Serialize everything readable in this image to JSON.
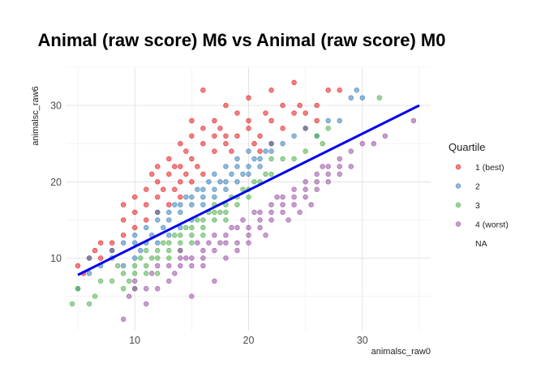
{
  "chart_data": {
    "type": "scatter",
    "title": "Animal (raw score) M6 vs Animal (raw score) M0",
    "xlabel": "animalsc_raw0",
    "ylabel": "animalsc_raw6",
    "xlim": [
      4,
      36
    ],
    "ylim": [
      0.5,
      35
    ],
    "x_ticks": [
      10,
      20,
      30
    ],
    "y_ticks": [
      10,
      20,
      30
    ],
    "x_tick_labels": [
      "10",
      "20",
      "30"
    ],
    "y_tick_labels": [
      "10",
      "20",
      "30"
    ],
    "grid": true,
    "legend": {
      "title": "Quartile",
      "placement": "right",
      "entries": [
        "1 (best)",
        "2",
        "3",
        "4 (worst)",
        "NA"
      ]
    },
    "trend_line": {
      "x": [
        5,
        35
      ],
      "y": [
        7.8,
        30
      ],
      "color": "#0000ee"
    },
    "series": [
      {
        "name": "1 (best)",
        "color": "#e41a1c",
        "points": [
          [
            5,
            9
          ],
          [
            5.5,
            8
          ],
          [
            6,
            10
          ],
          [
            6.5,
            11
          ],
          [
            7,
            12
          ],
          [
            7,
            10
          ],
          [
            8,
            12
          ],
          [
            8,
            11
          ],
          [
            9,
            13
          ],
          [
            9,
            17
          ],
          [
            9,
            15
          ],
          [
            10,
            16
          ],
          [
            10,
            18
          ],
          [
            10,
            14
          ],
          [
            11,
            17
          ],
          [
            11,
            15
          ],
          [
            11,
            19
          ],
          [
            11.5,
            21
          ],
          [
            12,
            18
          ],
          [
            12,
            20
          ],
          [
            12,
            22
          ],
          [
            12,
            16
          ],
          [
            12.5,
            19
          ],
          [
            13,
            21
          ],
          [
            13,
            17
          ],
          [
            13,
            23
          ],
          [
            13.5,
            19
          ],
          [
            13.5,
            22
          ],
          [
            14,
            25
          ],
          [
            14,
            20
          ],
          [
            14,
            22
          ],
          [
            14,
            18
          ],
          [
            14.5,
            24
          ],
          [
            14.5,
            21
          ],
          [
            15,
            26
          ],
          [
            15,
            23
          ],
          [
            15,
            20
          ],
          [
            15,
            28
          ],
          [
            15.5,
            22
          ],
          [
            16,
            25
          ],
          [
            16,
            27
          ],
          [
            16,
            21
          ],
          [
            16,
            32
          ],
          [
            17,
            26
          ],
          [
            17,
            24
          ],
          [
            17,
            28
          ],
          [
            17.5,
            27
          ],
          [
            18,
            26
          ],
          [
            18,
            25
          ],
          [
            18,
            30
          ],
          [
            18.5,
            24
          ],
          [
            19,
            29
          ],
          [
            19,
            26
          ],
          [
            20,
            28
          ],
          [
            20,
            27
          ],
          [
            20,
            31
          ],
          [
            20.5,
            25
          ],
          [
            21,
            24
          ],
          [
            21,
            26
          ],
          [
            21.5,
            29
          ],
          [
            22,
            28
          ],
          [
            22,
            25
          ],
          [
            22,
            32
          ],
          [
            23,
            27
          ],
          [
            23,
            30
          ],
          [
            24,
            29
          ],
          [
            24,
            33
          ],
          [
            24.5,
            30
          ],
          [
            25,
            29
          ],
          [
            25,
            27
          ],
          [
            26,
            30
          ],
          [
            26,
            28
          ],
          [
            27,
            32
          ],
          [
            28,
            32
          ]
        ]
      },
      {
        "name": "2",
        "color": "#377eb8",
        "points": [
          [
            5,
            6
          ],
          [
            6,
            8
          ],
          [
            6,
            10
          ],
          [
            7,
            9
          ],
          [
            8,
            10
          ],
          [
            8,
            11
          ],
          [
            9,
            9
          ],
          [
            9,
            12
          ],
          [
            10,
            10
          ],
          [
            10,
            12
          ],
          [
            10,
            13
          ],
          [
            10.5,
            11
          ],
          [
            11,
            12
          ],
          [
            11,
            14
          ],
          [
            11.5,
            13
          ],
          [
            12,
            15
          ],
          [
            12,
            12
          ],
          [
            12,
            16
          ],
          [
            12.5,
            14
          ],
          [
            13,
            13
          ],
          [
            13,
            16
          ],
          [
            13,
            15
          ],
          [
            13.5,
            17
          ],
          [
            14,
            14
          ],
          [
            14,
            17
          ],
          [
            14,
            16
          ],
          [
            14.5,
            18
          ],
          [
            15,
            15
          ],
          [
            15,
            18
          ],
          [
            15,
            17
          ],
          [
            15.5,
            19
          ],
          [
            16,
            17
          ],
          [
            16,
            19
          ],
          [
            16,
            18
          ],
          [
            16.5,
            20
          ],
          [
            17,
            18
          ],
          [
            17,
            19
          ],
          [
            17,
            21
          ],
          [
            17.5,
            20
          ],
          [
            18,
            19
          ],
          [
            18,
            20
          ],
          [
            18,
            22
          ],
          [
            18.5,
            21
          ],
          [
            19,
            20
          ],
          [
            19,
            22
          ],
          [
            19,
            23
          ],
          [
            19.5,
            21
          ],
          [
            20,
            21
          ],
          [
            20,
            22
          ],
          [
            20,
            24
          ],
          [
            20.5,
            23
          ],
          [
            21,
            22
          ],
          [
            21,
            23
          ],
          [
            21.5,
            24
          ],
          [
            22,
            24
          ],
          [
            22,
            25
          ],
          [
            23,
            25
          ],
          [
            24,
            26
          ],
          [
            25,
            27
          ],
          [
            26,
            26
          ],
          [
            27,
            28
          ],
          [
            28,
            28
          ],
          [
            29,
            31
          ],
          [
            29.5,
            32
          ],
          [
            30,
            31
          ]
        ]
      },
      {
        "name": "3",
        "color": "#4daf4a",
        "points": [
          [
            4.5,
            4
          ],
          [
            5,
            6
          ],
          [
            6,
            4
          ],
          [
            6.5,
            5
          ],
          [
            7,
            7
          ],
          [
            8,
            7
          ],
          [
            8.5,
            9
          ],
          [
            9,
            6
          ],
          [
            9,
            8
          ],
          [
            9.5,
            7
          ],
          [
            10,
            8
          ],
          [
            10,
            9
          ],
          [
            10,
            6
          ],
          [
            10.5,
            10
          ],
          [
            11,
            9
          ],
          [
            11,
            8
          ],
          [
            11,
            11
          ],
          [
            11.5,
            10
          ],
          [
            12,
            10
          ],
          [
            12,
            11
          ],
          [
            12,
            8
          ],
          [
            12.5,
            12
          ],
          [
            13,
            11
          ],
          [
            13,
            12
          ],
          [
            13,
            10
          ],
          [
            13.5,
            13
          ],
          [
            14,
            12
          ],
          [
            14,
            13
          ],
          [
            14,
            11
          ],
          [
            14.5,
            14
          ],
          [
            15,
            13
          ],
          [
            15,
            14
          ],
          [
            15,
            12
          ],
          [
            15.5,
            15
          ],
          [
            16,
            14
          ],
          [
            16,
            15
          ],
          [
            16,
            13
          ],
          [
            16.5,
            16
          ],
          [
            17,
            15
          ],
          [
            17,
            16
          ],
          [
            17,
            17
          ],
          [
            17.5,
            16
          ],
          [
            18,
            16
          ],
          [
            18,
            17
          ],
          [
            18,
            15
          ],
          [
            18.5,
            18
          ],
          [
            19,
            17
          ],
          [
            19,
            18
          ],
          [
            19.5,
            19
          ],
          [
            20,
            18
          ],
          [
            20,
            19
          ],
          [
            20.5,
            20
          ],
          [
            21,
            20
          ],
          [
            21.5,
            21
          ],
          [
            22,
            21
          ],
          [
            22,
            23
          ],
          [
            23,
            23
          ],
          [
            24,
            23
          ],
          [
            25,
            24
          ],
          [
            26,
            26
          ],
          [
            26.5,
            25
          ],
          [
            27,
            27
          ],
          [
            31.5,
            31
          ]
        ]
      },
      {
        "name": "4 (worst)",
        "color": "#984ea3",
        "points": [
          [
            9,
            2
          ],
          [
            9.5,
            5
          ],
          [
            10,
            6
          ],
          [
            10,
            7
          ],
          [
            11,
            4
          ],
          [
            11,
            6
          ],
          [
            11.5,
            8
          ],
          [
            12,
            6
          ],
          [
            12,
            9
          ],
          [
            13,
            7
          ],
          [
            13,
            9
          ],
          [
            13.5,
            8
          ],
          [
            14,
            9
          ],
          [
            14,
            10
          ],
          [
            14,
            11
          ],
          [
            14.5,
            10
          ],
          [
            15,
            5
          ],
          [
            15,
            9
          ],
          [
            15,
            10
          ],
          [
            15.5,
            12
          ],
          [
            16,
            9
          ],
          [
            16,
            11
          ],
          [
            16,
            10
          ],
          [
            16.5,
            12
          ],
          [
            17,
            11
          ],
          [
            17,
            13
          ],
          [
            17,
            7
          ],
          [
            17.5,
            12
          ],
          [
            18,
            10
          ],
          [
            18,
            12
          ],
          [
            18,
            13
          ],
          [
            18.5,
            14
          ],
          [
            19,
            11
          ],
          [
            19,
            12
          ],
          [
            19,
            14
          ],
          [
            19.5,
            15
          ],
          [
            20,
            13
          ],
          [
            20,
            14
          ],
          [
            20,
            12
          ],
          [
            20.5,
            16
          ],
          [
            21,
            14
          ],
          [
            21,
            15
          ],
          [
            21,
            16
          ],
          [
            21.5,
            13
          ],
          [
            22,
            15
          ],
          [
            22,
            16
          ],
          [
            22,
            17
          ],
          [
            22.5,
            18
          ],
          [
            23,
            16
          ],
          [
            23,
            17
          ],
          [
            23,
            18
          ],
          [
            23.5,
            15
          ],
          [
            24,
            17
          ],
          [
            24,
            18
          ],
          [
            24,
            19
          ],
          [
            24.5,
            16
          ],
          [
            25,
            18
          ],
          [
            25,
            19
          ],
          [
            25,
            20
          ],
          [
            25.5,
            17
          ],
          [
            26,
            19
          ],
          [
            26,
            20
          ],
          [
            26,
            21
          ],
          [
            26.5,
            22
          ],
          [
            27,
            20
          ],
          [
            27,
            21
          ],
          [
            27,
            22
          ],
          [
            28,
            21
          ],
          [
            28,
            22
          ],
          [
            28,
            23
          ],
          [
            29,
            22
          ],
          [
            29,
            24
          ],
          [
            30,
            25
          ],
          [
            31,
            25
          ],
          [
            32,
            26
          ],
          [
            34.5,
            28
          ]
        ]
      }
    ]
  }
}
